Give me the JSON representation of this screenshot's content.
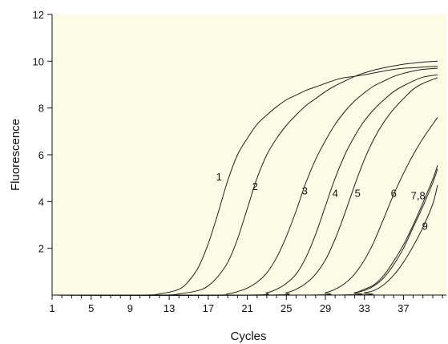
{
  "chart_data": {
    "type": "line",
    "title": "",
    "xlabel": "Cycles",
    "ylabel": "Fluorescence",
    "xlim": [
      1,
      41
    ],
    "ylim": [
      0,
      12
    ],
    "grid": false,
    "legend": "none",
    "plot_background": "#fbfbe6",
    "line_color": "#222222",
    "x_ticks": [
      1,
      5,
      9,
      13,
      17,
      21,
      25,
      29,
      33,
      37
    ],
    "y_ticks": [
      2,
      4,
      6,
      8,
      10,
      12
    ],
    "curve_labels": [
      {
        "text": "1",
        "x": 18.1,
        "y": 4.9
      },
      {
        "text": "2",
        "x": 21.8,
        "y": 4.5
      },
      {
        "text": "3",
        "x": 26.9,
        "y": 4.3
      },
      {
        "text": "4",
        "x": 30.0,
        "y": 4.2
      },
      {
        "text": "5",
        "x": 32.3,
        "y": 4.2
      },
      {
        "text": "6",
        "x": 36.0,
        "y": 4.2
      },
      {
        "text": "7,8",
        "x": 38.5,
        "y": 4.1
      },
      {
        "text": "9",
        "x": 39.2,
        "y": 2.8
      }
    ],
    "series": [
      {
        "name": "1",
        "x": [
          1,
          10,
          12,
          14,
          15,
          16,
          17,
          18,
          19,
          20,
          21,
          22,
          23,
          24,
          25,
          26,
          27,
          28,
          29,
          30,
          31,
          32,
          33,
          34,
          35,
          36,
          37,
          38,
          39,
          40.5
        ],
        "y": [
          0,
          0,
          0.05,
          0.25,
          0.6,
          1.2,
          2.2,
          3.5,
          4.9,
          6.0,
          6.7,
          7.3,
          7.7,
          8.05,
          8.35,
          8.55,
          8.75,
          8.9,
          9.05,
          9.2,
          9.3,
          9.35,
          9.42,
          9.5,
          9.58,
          9.65,
          9.7,
          9.72,
          9.75,
          9.78
        ]
      },
      {
        "name": "2",
        "x": [
          1,
          12,
          14,
          16,
          17,
          18,
          19,
          20,
          21,
          22,
          23,
          24,
          25,
          26,
          27,
          28,
          29,
          30,
          31,
          32,
          33,
          34,
          35,
          36,
          37,
          38,
          39,
          40.5
        ],
        "y": [
          0,
          0,
          0.05,
          0.2,
          0.4,
          0.8,
          1.4,
          2.4,
          3.7,
          5.0,
          6.0,
          6.7,
          7.25,
          7.7,
          8.1,
          8.4,
          8.7,
          8.95,
          9.15,
          9.35,
          9.5,
          9.62,
          9.72,
          9.8,
          9.87,
          9.92,
          9.96,
          10.0
        ]
      },
      {
        "name": "3",
        "x": [
          1,
          17,
          19,
          20,
          21,
          22,
          23,
          24,
          25,
          26,
          27,
          28,
          29,
          30,
          31,
          32,
          33,
          34,
          35,
          36,
          37,
          38,
          39,
          40.5
        ],
        "y": [
          0,
          0,
          0.05,
          0.15,
          0.3,
          0.55,
          0.95,
          1.6,
          2.5,
          3.6,
          4.8,
          5.8,
          6.6,
          7.3,
          7.85,
          8.3,
          8.65,
          8.95,
          9.15,
          9.35,
          9.48,
          9.58,
          9.65,
          9.7
        ]
      },
      {
        "name": "4",
        "x": [
          1,
          21,
          23,
          24,
          25,
          26,
          27,
          28,
          29,
          30,
          31,
          32,
          33,
          34,
          35,
          36,
          37,
          38,
          39,
          40.5
        ],
        "y": [
          0,
          0,
          0.1,
          0.25,
          0.5,
          0.9,
          1.6,
          2.6,
          3.8,
          5.0,
          6.0,
          6.8,
          7.45,
          7.95,
          8.35,
          8.7,
          8.95,
          9.15,
          9.32,
          9.42
        ]
      },
      {
        "name": "5",
        "x": [
          1,
          23,
          25,
          26,
          27,
          28,
          29,
          30,
          31,
          32,
          33,
          34,
          35,
          36,
          37,
          38,
          39,
          40.5
        ],
        "y": [
          0,
          0,
          0.1,
          0.25,
          0.5,
          0.9,
          1.5,
          2.4,
          3.5,
          4.7,
          5.8,
          6.7,
          7.4,
          7.95,
          8.4,
          8.8,
          9.05,
          9.3
        ]
      },
      {
        "name": "6",
        "x": [
          1,
          27,
          29,
          30,
          31,
          32,
          33,
          34,
          35,
          36,
          37,
          38,
          39,
          40.5
        ],
        "y": [
          0,
          0,
          0.1,
          0.25,
          0.5,
          0.9,
          1.5,
          2.3,
          3.3,
          4.3,
          5.2,
          6.0,
          6.7,
          7.6
        ]
      },
      {
        "name": "7",
        "x": [
          1,
          30,
          32,
          33,
          34,
          35,
          36,
          37,
          38,
          39,
          40,
          40.5
        ],
        "y": [
          0,
          0,
          0.1,
          0.2,
          0.4,
          0.75,
          1.3,
          2.0,
          2.9,
          3.8,
          4.8,
          5.4
        ]
      },
      {
        "name": "8",
        "x": [
          1,
          30,
          32,
          33,
          34,
          35,
          36,
          37,
          38,
          39,
          40,
          40.5
        ],
        "y": [
          0,
          0,
          0.1,
          0.25,
          0.45,
          0.85,
          1.45,
          2.15,
          3.0,
          3.95,
          4.95,
          5.55
        ]
      },
      {
        "name": "9",
        "x": [
          1,
          31,
          33,
          34,
          35,
          36,
          37,
          38,
          39,
          40,
          40.5
        ],
        "y": [
          0,
          0,
          0.1,
          0.2,
          0.45,
          0.85,
          1.4,
          2.1,
          2.9,
          3.9,
          4.7
        ]
      }
    ]
  }
}
